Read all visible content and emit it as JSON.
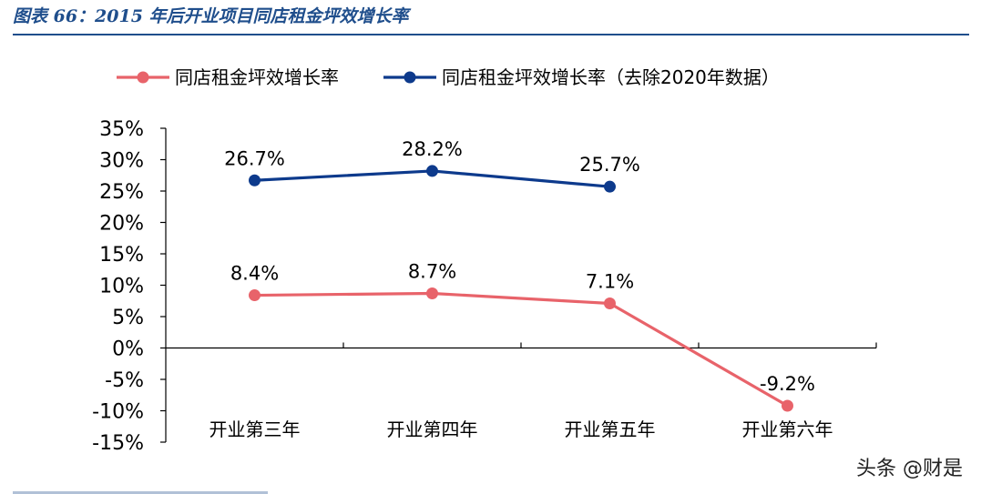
{
  "figure_title": "图表 66：2015 年后开业项目同店租金坪效增长率",
  "watermark": "头条 @财是",
  "colors": {
    "red": "#e8636a",
    "blue": "#0d3a8c",
    "axis": "#000000",
    "title": "#1f4e8c"
  },
  "chart_data": {
    "type": "line",
    "title": "",
    "xlabel": "",
    "ylabel": "",
    "categories": [
      "开业第三年",
      "开业第四年",
      "开业第五年",
      "开业第六年"
    ],
    "ylim": [
      -0.15,
      0.35
    ],
    "yticks": [
      "35%",
      "30%",
      "25%",
      "20%",
      "15%",
      "10%",
      "5%",
      "0%",
      "-5%",
      "-10%",
      "-15%"
    ],
    "legend_position": "top",
    "grid": false,
    "series": [
      {
        "name": "同店租金坪效增长率",
        "color": "#e8636a",
        "values": [
          0.084,
          0.087,
          0.071,
          -0.092
        ],
        "labels": [
          "8.4%",
          "8.7%",
          "7.1%",
          "-9.2%"
        ]
      },
      {
        "name": "同店租金坪效增长率（去除2020年数据）",
        "color": "#0d3a8c",
        "values": [
          0.267,
          0.282,
          0.257,
          null
        ],
        "labels": [
          "26.7%",
          "28.2%",
          "25.7%",
          ""
        ]
      }
    ]
  }
}
